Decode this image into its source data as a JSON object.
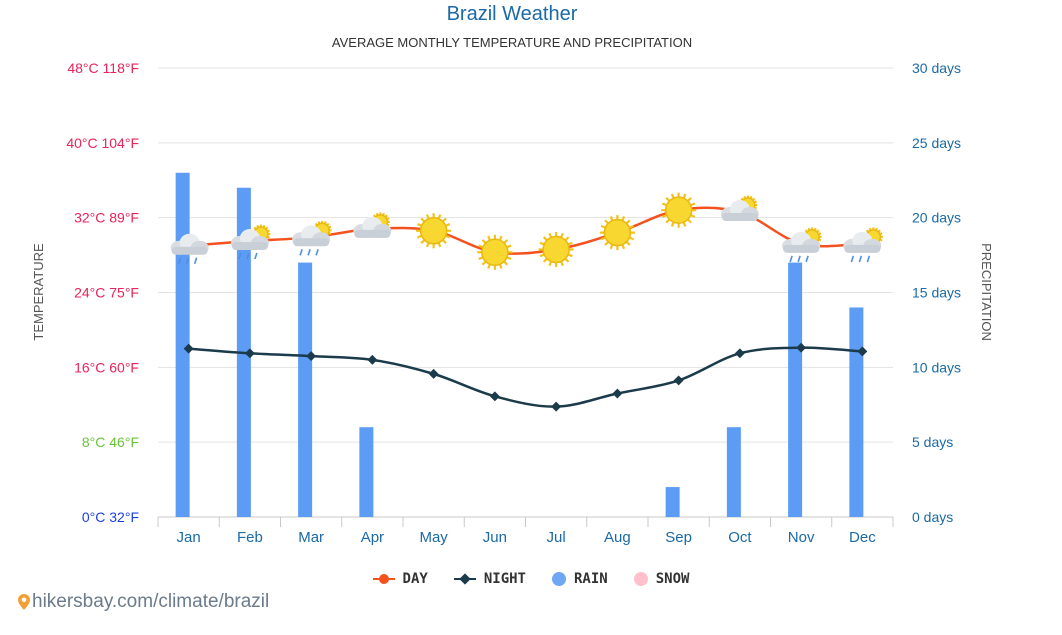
{
  "chart_data": {
    "type": "bar+line",
    "title": "Brazil Weather",
    "subtitle": "AVERAGE MONTHLY TEMPERATURE AND PRECIPITATION",
    "categories": [
      "Jan",
      "Feb",
      "Mar",
      "Apr",
      "May",
      "Jun",
      "Jul",
      "Aug",
      "Sep",
      "Oct",
      "Nov",
      "Dec"
    ],
    "y_left": {
      "label": "TEMPERATURE",
      "unit": "°C",
      "range": [
        0,
        48
      ],
      "ticks": [
        {
          "value": 0,
          "label": "0°C 32°F",
          "color": "#1f3fe0"
        },
        {
          "value": 8,
          "label": "8°C 46°F",
          "color": "#6ac43a"
        },
        {
          "value": 16,
          "label": "16°C 60°F",
          "color": "#e8245a"
        },
        {
          "value": 24,
          "label": "24°C 75°F",
          "color": "#e8245a"
        },
        {
          "value": 32,
          "label": "32°C 89°F",
          "color": "#e8245a"
        },
        {
          "value": 40,
          "label": "40°C 104°F",
          "color": "#e8245a"
        },
        {
          "value": 48,
          "label": "48°C 118°F",
          "color": "#e8245a"
        }
      ]
    },
    "y_right": {
      "label": "PRECIPITATION",
      "unit": "days",
      "range": [
        0,
        30
      ],
      "ticks": [
        {
          "value": 0,
          "label": "0 days"
        },
        {
          "value": 5,
          "label": "5 days"
        },
        {
          "value": 10,
          "label": "10 days"
        },
        {
          "value": 15,
          "label": "15 days"
        },
        {
          "value": 20,
          "label": "20 days"
        },
        {
          "value": 25,
          "label": "25 days"
        },
        {
          "value": 30,
          "label": "30 days"
        }
      ]
    },
    "grid": true,
    "series": [
      {
        "name": "DAY",
        "kind": "line",
        "axis": "left",
        "color": "#f4511e",
        "values": [
          29,
          29.5,
          29.9,
          30.8,
          30.6,
          28.3,
          28.6,
          30.4,
          32.8,
          32.6,
          29.2,
          29.2
        ]
      },
      {
        "name": "NIGHT",
        "kind": "line",
        "axis": "left",
        "color": "#1b3b4b",
        "values": [
          18,
          17.5,
          17.2,
          16.8,
          15.3,
          12.9,
          11.8,
          13.2,
          14.6,
          17.5,
          18.1,
          17.7
        ]
      },
      {
        "name": "RAIN",
        "kind": "bar",
        "axis": "right",
        "color": "#5c9cf5",
        "values": [
          23,
          22,
          17,
          6,
          0,
          0,
          0,
          0,
          2,
          6,
          17,
          14
        ]
      },
      {
        "name": "SNOW",
        "kind": "bar",
        "axis": "right",
        "color": "#ffc0cb",
        "values": [
          0,
          0,
          0,
          0,
          0,
          0,
          0,
          0,
          0,
          0,
          0,
          0
        ]
      }
    ],
    "weather_icons": [
      "rain-cloud-icon",
      "rain-cloud-sun-icon",
      "rain-cloud-sun-icon",
      "cloud-sun-icon",
      "sun-icon",
      "sun-icon",
      "sun-icon",
      "sun-icon",
      "sun-icon",
      "cloud-sun-icon",
      "rain-cloud-sun-icon",
      "rain-cloud-sun-icon"
    ],
    "legend": {
      "position": "bottom-center"
    }
  },
  "legend_items": {
    "day": "DAY",
    "night": "NIGHT",
    "rain": "RAIN",
    "snow": "SNOW"
  },
  "credit": "hikersbay.com/climate/brazil",
  "colors": {
    "title": "#1a6aa8",
    "right_axis": "#1a6aa8",
    "grid": "#e3e3e3",
    "axis_title": "#555555"
  }
}
